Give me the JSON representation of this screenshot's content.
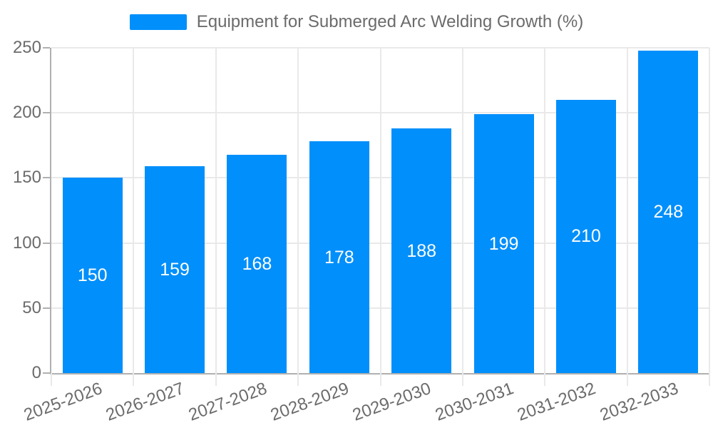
{
  "chart_data": {
    "type": "bar",
    "title": "Equipment for Submerged Arc Welding Growth (%)",
    "series_name": "Equipment for Submerged Arc Welding Growth (%)",
    "categories": [
      "2025-2026",
      "2026-2027",
      "2027-2028",
      "2028-2029",
      "2029-2030",
      "2030-2031",
      "2031-2032",
      "2032-2033"
    ],
    "values": [
      150,
      159,
      168,
      178,
      188,
      199,
      210,
      248
    ],
    "xlabel": "",
    "ylabel": "",
    "ylim": [
      0,
      250
    ],
    "yticks": [
      0,
      50,
      100,
      150,
      200,
      250
    ],
    "grid": "on",
    "legend_position": "top",
    "data_labels": "inside-center"
  },
  "colors": {
    "bar": "#008FFB",
    "grid": "#e9e9e9",
    "axis": "#b0b0b0",
    "text": "#6b6b6b",
    "value_label": "#ffffff",
    "background": "#ffffff"
  }
}
